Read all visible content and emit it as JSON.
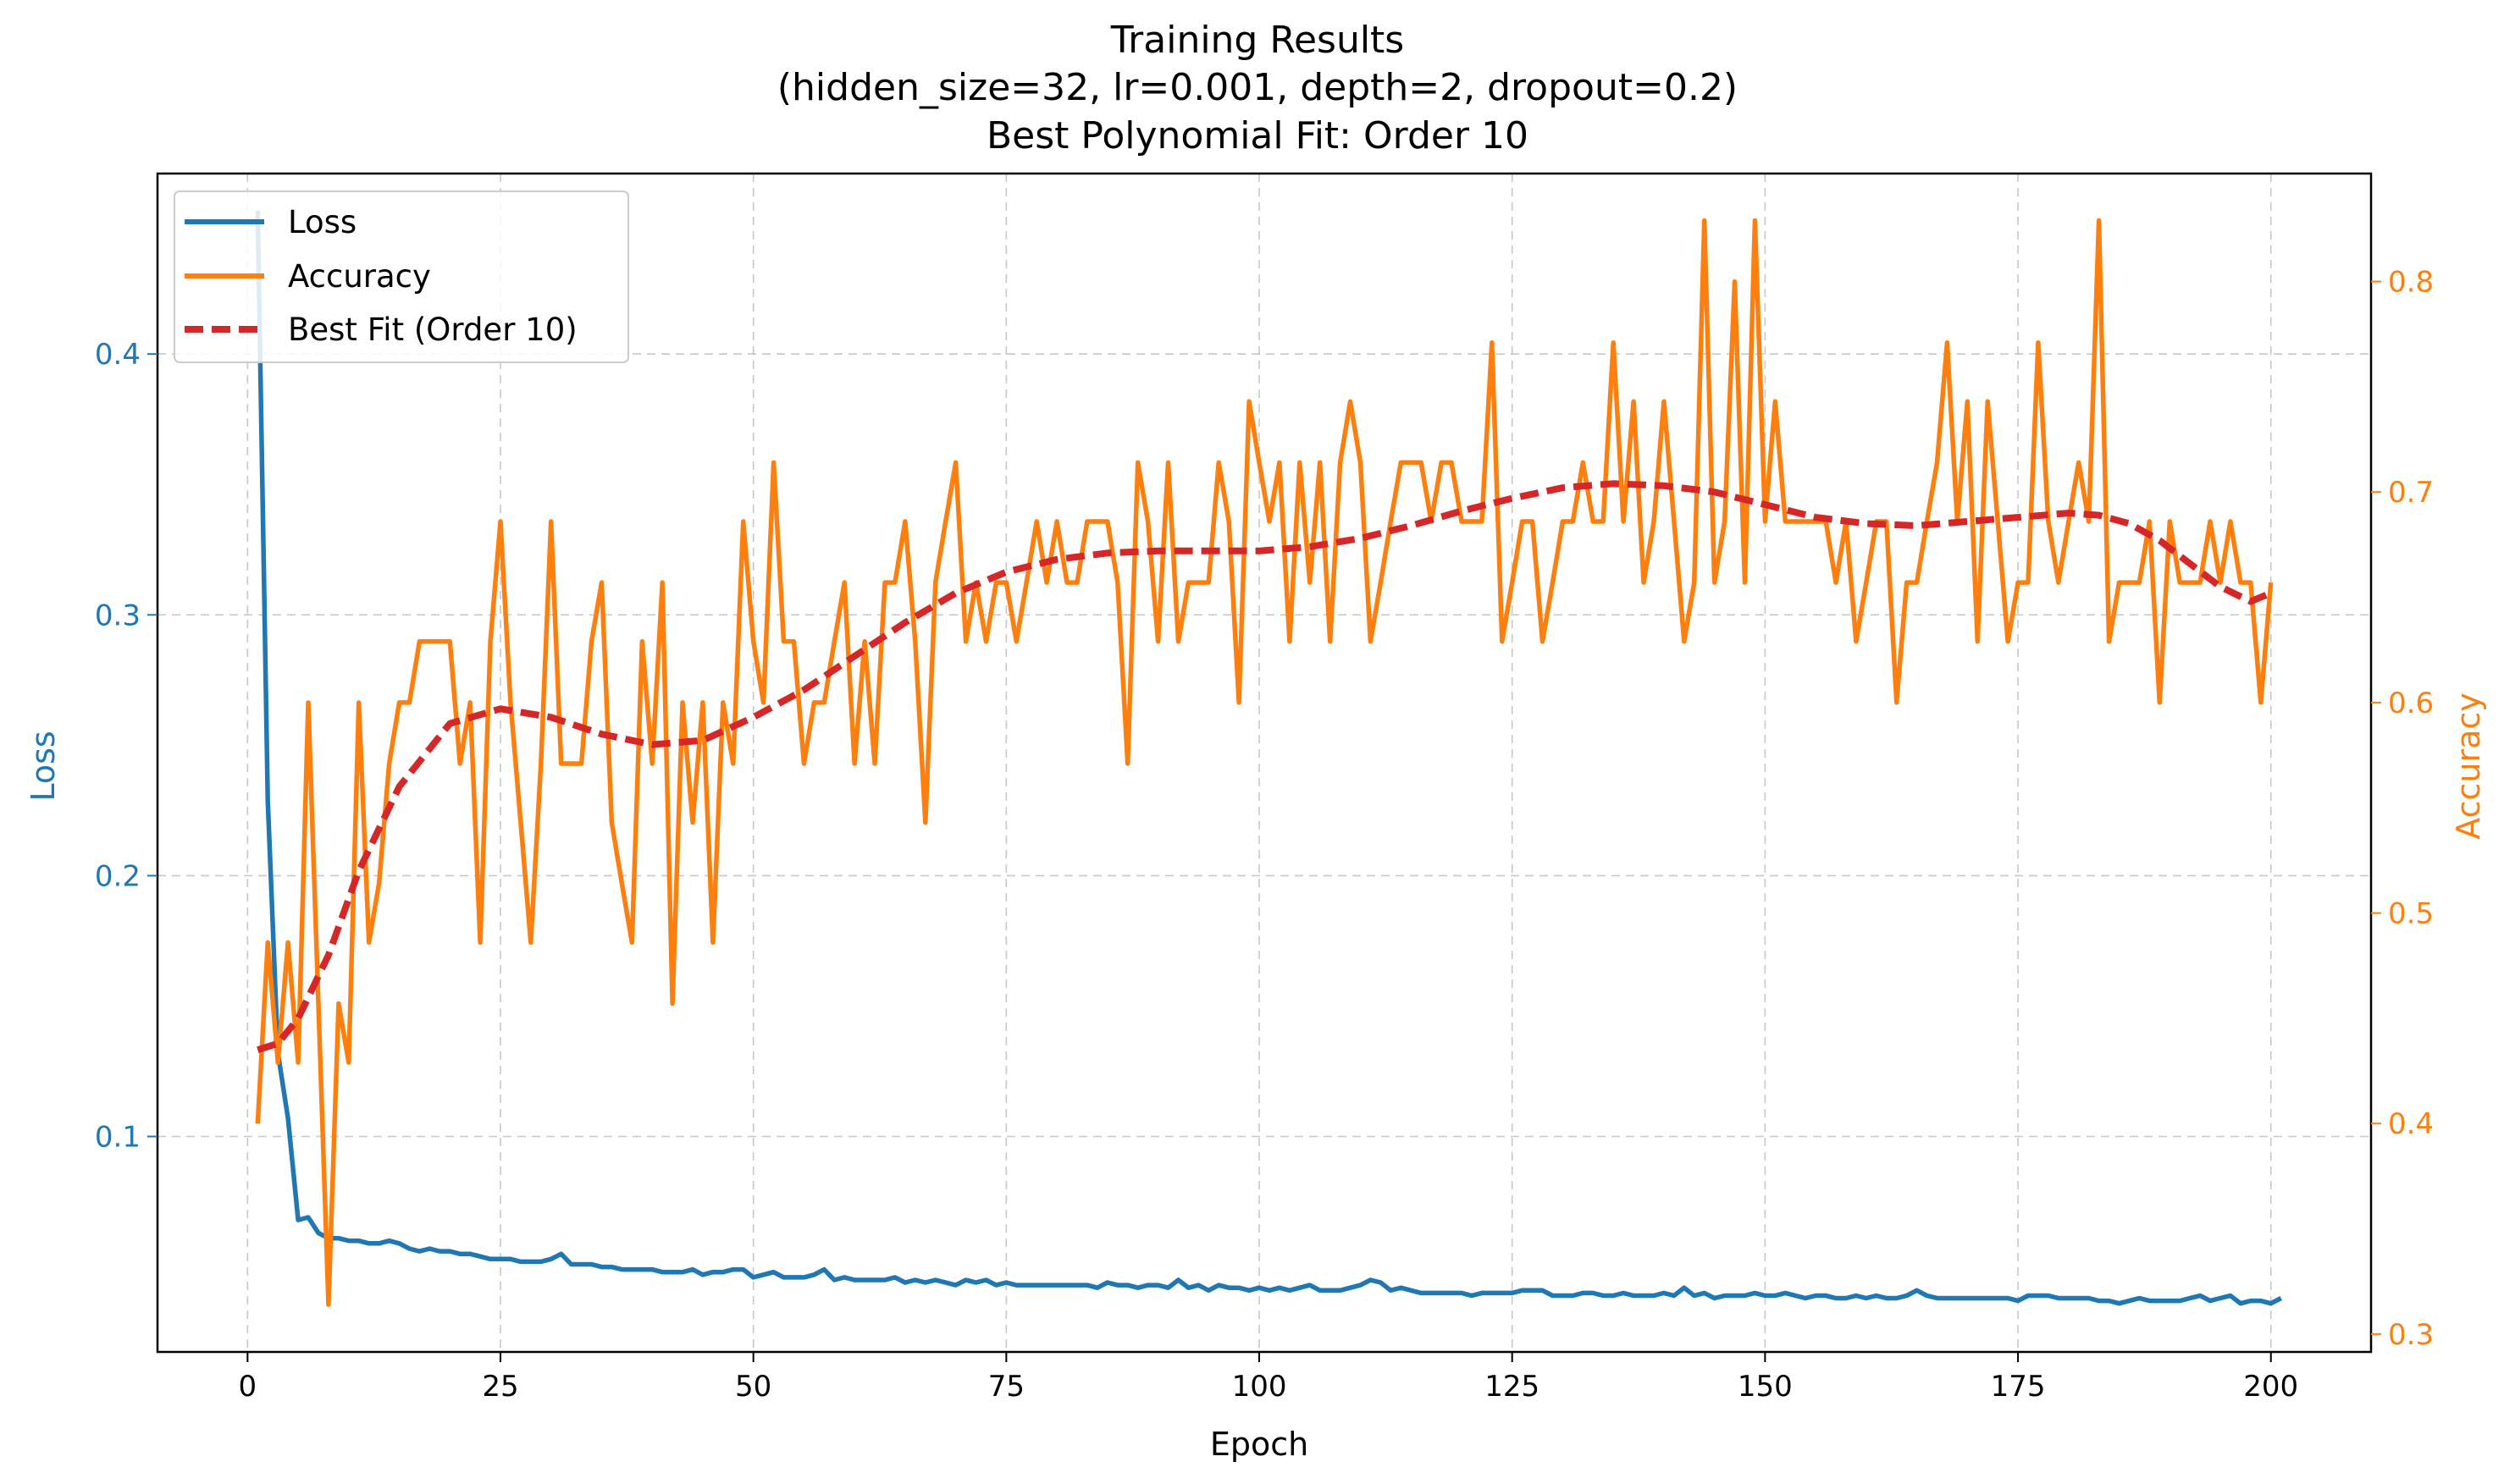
{
  "chart_data": {
    "type": "line",
    "title": [
      "Training Results",
      "(hidden_size=32, lr=0.001, depth=2, dropout=0.2)",
      "Best Polynomial Fit: Order 10"
    ],
    "xlabel": "Epoch",
    "ylabel_left": "Loss",
    "ylabel_right": "Accuracy",
    "xlim": [
      -8.9,
      209.9
    ],
    "ylim_left": [
      0.0174,
      0.4692
    ],
    "ylim_right": [
      0.2915,
      0.8513
    ],
    "xticks": [
      0,
      25,
      50,
      75,
      100,
      125,
      150,
      175,
      200
    ],
    "xtick_labels": [
      "0",
      "25",
      "50",
      "75",
      "100",
      "125",
      "150",
      "175",
      "200"
    ],
    "yticks_left": [
      0.1,
      0.2,
      0.3,
      0.4
    ],
    "ytick_labels_left": [
      "0.1",
      "0.2",
      "0.3",
      "0.4"
    ],
    "yticks_right": [
      0.3,
      0.4,
      0.5,
      0.6,
      0.7,
      0.8
    ],
    "ytick_labels_right": [
      "0.3",
      "0.4",
      "0.5",
      "0.6",
      "0.7",
      "0.8"
    ],
    "grid": true,
    "legend_position": "top-left",
    "colors": {
      "loss": "#1f77b4",
      "accuracy": "#ff7f0e",
      "fit": "#d62728"
    },
    "series": [
      {
        "name": "Loss",
        "axis": "left",
        "style": "solid",
        "x_start": 1,
        "values": [
          0.455,
          0.229,
          0.132,
          0.107,
          0.068,
          0.069,
          0.063,
          0.061,
          0.061,
          0.06,
          0.06,
          0.059,
          0.059,
          0.06,
          0.059,
          0.057,
          0.056,
          0.057,
          0.056,
          0.056,
          0.055,
          0.055,
          0.054,
          0.053,
          0.053,
          0.053,
          0.052,
          0.052,
          0.052,
          0.053,
          0.055,
          0.051,
          0.051,
          0.051,
          0.05,
          0.05,
          0.049,
          0.049,
          0.049,
          0.049,
          0.048,
          0.048,
          0.048,
          0.049,
          0.047,
          0.048,
          0.048,
          0.049,
          0.049,
          0.046,
          0.047,
          0.048,
          0.046,
          0.046,
          0.046,
          0.047,
          0.049,
          0.045,
          0.046,
          0.045,
          0.045,
          0.045,
          0.045,
          0.046,
          0.044,
          0.045,
          0.044,
          0.045,
          0.044,
          0.043,
          0.045,
          0.044,
          0.045,
          0.043,
          0.044,
          0.043,
          0.043,
          0.043,
          0.043,
          0.043,
          0.043,
          0.043,
          0.043,
          0.042,
          0.044,
          0.043,
          0.043,
          0.042,
          0.043,
          0.043,
          0.042,
          0.045,
          0.042,
          0.043,
          0.041,
          0.043,
          0.042,
          0.042,
          0.041,
          0.042,
          0.041,
          0.042,
          0.041,
          0.042,
          0.043,
          0.041,
          0.041,
          0.041,
          0.042,
          0.043,
          0.045,
          0.044,
          0.041,
          0.042,
          0.041,
          0.04,
          0.04,
          0.04,
          0.04,
          0.04,
          0.039,
          0.04,
          0.04,
          0.04,
          0.04,
          0.041,
          0.041,
          0.041,
          0.039,
          0.039,
          0.039,
          0.04,
          0.04,
          0.039,
          0.039,
          0.04,
          0.039,
          0.039,
          0.039,
          0.04,
          0.039,
          0.042,
          0.039,
          0.04,
          0.038,
          0.039,
          0.039,
          0.039,
          0.04,
          0.039,
          0.039,
          0.04,
          0.039,
          0.038,
          0.039,
          0.039,
          0.038,
          0.038,
          0.039,
          0.038,
          0.039,
          0.038,
          0.038,
          0.039,
          0.041,
          0.039,
          0.038,
          0.038,
          0.038,
          0.038,
          0.038,
          0.038,
          0.038,
          0.038,
          0.037,
          0.039,
          0.039,
          0.039,
          0.038,
          0.038,
          0.038,
          0.038,
          0.037,
          0.037,
          0.036,
          0.037,
          0.038,
          0.037,
          0.037,
          0.037,
          0.037,
          0.038,
          0.039,
          0.037,
          0.038,
          0.039,
          0.036,
          0.037,
          0.037,
          0.036,
          0.038
        ]
      },
      {
        "name": "Accuracy",
        "axis": "right",
        "style": "solid",
        "x_start": 1,
        "values": [
          0.4,
          0.486,
          0.429,
          0.486,
          0.429,
          0.6,
          0.457,
          0.314,
          0.457,
          0.429,
          0.6,
          0.486,
          0.514,
          0.571,
          0.6,
          0.6,
          0.629,
          0.629,
          0.629,
          0.629,
          0.571,
          0.6,
          0.486,
          0.629,
          0.686,
          0.6,
          0.543,
          0.486,
          0.571,
          0.686,
          0.571,
          0.571,
          0.571,
          0.629,
          0.657,
          0.543,
          0.514,
          0.486,
          0.629,
          0.571,
          0.657,
          0.457,
          0.6,
          0.543,
          0.6,
          0.486,
          0.6,
          0.571,
          0.686,
          0.629,
          0.6,
          0.714,
          0.629,
          0.629,
          0.571,
          0.6,
          0.6,
          0.629,
          0.657,
          0.571,
          0.629,
          0.571,
          0.657,
          0.657,
          0.686,
          0.629,
          0.543,
          0.657,
          0.686,
          0.714,
          0.629,
          0.657,
          0.629,
          0.657,
          0.657,
          0.629,
          0.657,
          0.686,
          0.657,
          0.686,
          0.657,
          0.657,
          0.686,
          0.686,
          0.686,
          0.657,
          0.571,
          0.714,
          0.686,
          0.629,
          0.714,
          0.629,
          0.657,
          0.657,
          0.657,
          0.714,
          0.686,
          0.6,
          0.743,
          0.714,
          0.686,
          0.714,
          0.629,
          0.714,
          0.657,
          0.714,
          0.629,
          0.714,
          0.743,
          0.714,
          0.629,
          0.657,
          0.686,
          0.714,
          0.714,
          0.714,
          0.686,
          0.714,
          0.714,
          0.686,
          0.686,
          0.686,
          0.771,
          0.629,
          0.657,
          0.686,
          0.686,
          0.629,
          0.657,
          0.686,
          0.686,
          0.714,
          0.686,
          0.686,
          0.771,
          0.686,
          0.743,
          0.657,
          0.686,
          0.743,
          0.686,
          0.629,
          0.657,
          0.829,
          0.657,
          0.686,
          0.8,
          0.657,
          0.829,
          0.686,
          0.743,
          0.686,
          0.686,
          0.686,
          0.686,
          0.686,
          0.657,
          0.686,
          0.629,
          0.657,
          0.686,
          0.686,
          0.6,
          0.657,
          0.657,
          0.686,
          0.714,
          0.771,
          0.686,
          0.743,
          0.629,
          0.743,
          0.686,
          0.629,
          0.657,
          0.657,
          0.771,
          0.686,
          0.657,
          0.686,
          0.714,
          0.686,
          0.829,
          0.629,
          0.657,
          0.657,
          0.657,
          0.686,
          0.6,
          0.686,
          0.657,
          0.657,
          0.657,
          0.686,
          0.657,
          0.686,
          0.657,
          0.657,
          0.6,
          0.657
        ]
      },
      {
        "name": "Best Fit (Order 10)",
        "axis": "right",
        "style": "dashed",
        "x": [
          1,
          3,
          5,
          8,
          11,
          15,
          20,
          25,
          30,
          35,
          40,
          45,
          50,
          55,
          60,
          65,
          70,
          75,
          80,
          85,
          90,
          95,
          100,
          105,
          110,
          115,
          120,
          125,
          130,
          135,
          140,
          145,
          150,
          155,
          160,
          165,
          170,
          175,
          180,
          183,
          186,
          189,
          192,
          195,
          198,
          200
        ],
        "values": [
          0.435,
          0.438,
          0.45,
          0.48,
          0.52,
          0.56,
          0.59,
          0.597,
          0.593,
          0.585,
          0.58,
          0.582,
          0.593,
          0.606,
          0.622,
          0.638,
          0.652,
          0.662,
          0.668,
          0.671,
          0.672,
          0.672,
          0.672,
          0.674,
          0.678,
          0.684,
          0.691,
          0.697,
          0.702,
          0.704,
          0.703,
          0.7,
          0.694,
          0.688,
          0.685,
          0.684,
          0.686,
          0.688,
          0.69,
          0.689,
          0.685,
          0.677,
          0.666,
          0.655,
          0.648,
          0.652
        ]
      }
    ]
  }
}
